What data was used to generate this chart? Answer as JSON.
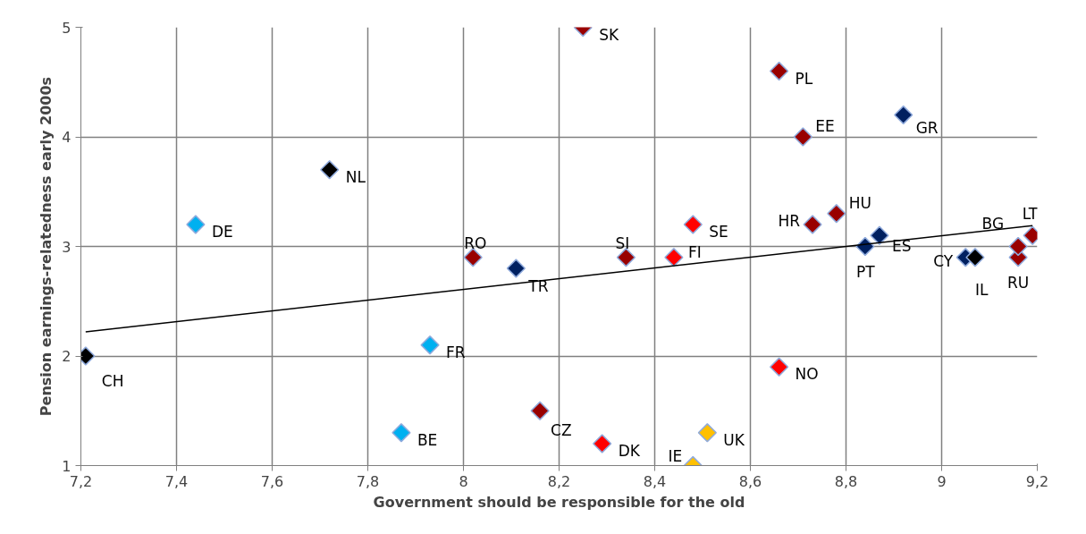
{
  "chart_data": {
    "type": "scatter",
    "xlabel": "Government should be responsible for the old",
    "ylabel": "Pension earnings-relatedness early 2000s",
    "marker": "diamond",
    "grid": true,
    "xlim": [
      7.2,
      9.2
    ],
    "ylim": [
      1,
      5
    ],
    "xticks": [
      {
        "value": 7.2,
        "label": "7,2"
      },
      {
        "value": 7.4,
        "label": "7,4"
      },
      {
        "value": 7.6,
        "label": "7,6"
      },
      {
        "value": 7.8,
        "label": "7,8"
      },
      {
        "value": 8,
        "label": "8"
      },
      {
        "value": 8.2,
        "label": "8,2"
      },
      {
        "value": 8.4,
        "label": "8,4"
      },
      {
        "value": 8.6,
        "label": "8,6"
      },
      {
        "value": 8.8,
        "label": "8,8"
      },
      {
        "value": 9,
        "label": "9"
      },
      {
        "value": 9.2,
        "label": "9,2"
      }
    ],
    "yticks": [
      1,
      2,
      3,
      4,
      5
    ],
    "series": [
      {
        "name": "CH",
        "color": "#000000",
        "x": [
          7.21
        ],
        "values": [
          2.0
        ]
      },
      {
        "name": "DE",
        "color": "#00b0f0",
        "x": [
          7.44
        ],
        "values": [
          3.2
        ]
      },
      {
        "name": "NL",
        "color": "#000000",
        "x": [
          7.72
        ],
        "values": [
          3.7
        ]
      },
      {
        "name": "BE",
        "color": "#00b0f0",
        "x": [
          7.87
        ],
        "values": [
          1.3
        ]
      },
      {
        "name": "FR",
        "color": "#00b0f0",
        "x": [
          7.93
        ],
        "values": [
          2.1
        ]
      },
      {
        "name": "RO",
        "color": "#990000",
        "x": [
          8.02
        ],
        "values": [
          2.9
        ]
      },
      {
        "name": "TR",
        "color": "#002060",
        "x": [
          8.11
        ],
        "values": [
          2.8
        ]
      },
      {
        "name": "CZ",
        "color": "#990000",
        "x": [
          8.16
        ],
        "values": [
          1.5
        ]
      },
      {
        "name": "SK",
        "color": "#990000",
        "x": [
          8.25
        ],
        "values": [
          5.0
        ]
      },
      {
        "name": "DK",
        "color": "#ff0000",
        "x": [
          8.29
        ],
        "values": [
          1.2
        ]
      },
      {
        "name": "SI",
        "color": "#990000",
        "x": [
          8.34
        ],
        "values": [
          2.9
        ]
      },
      {
        "name": "FI",
        "color": "#ff0000",
        "x": [
          8.44
        ],
        "values": [
          2.9
        ]
      },
      {
        "name": "SE",
        "color": "#ff0000",
        "x": [
          8.48
        ],
        "values": [
          3.2
        ]
      },
      {
        "name": "IE",
        "color": "#ffc000",
        "x": [
          8.48
        ],
        "values": [
          1.0
        ]
      },
      {
        "name": "UK",
        "color": "#ffc000",
        "x": [
          8.51
        ],
        "values": [
          1.3
        ]
      },
      {
        "name": "PL",
        "color": "#990000",
        "x": [
          8.66
        ],
        "values": [
          4.6
        ]
      },
      {
        "name": "NO",
        "color": "#ff0000",
        "x": [
          8.66
        ],
        "values": [
          1.9
        ]
      },
      {
        "name": "EE",
        "color": "#990000",
        "x": [
          8.71
        ],
        "values": [
          4.0
        ]
      },
      {
        "name": "HR",
        "color": "#990000",
        "x": [
          8.73
        ],
        "values": [
          3.2
        ]
      },
      {
        "name": "HU",
        "color": "#990000",
        "x": [
          8.78
        ],
        "values": [
          3.3
        ]
      },
      {
        "name": "PT",
        "color": "#002060",
        "x": [
          8.84
        ],
        "values": [
          3.0
        ]
      },
      {
        "name": "ES",
        "color": "#002060",
        "x": [
          8.87
        ],
        "values": [
          3.1
        ]
      },
      {
        "name": "GR",
        "color": "#002060",
        "x": [
          8.92
        ],
        "values": [
          4.2
        ]
      },
      {
        "name": "CY",
        "color": "#002060",
        "x": [
          9.05
        ],
        "values": [
          2.9
        ]
      },
      {
        "name": "IL",
        "color": "#000000",
        "x": [
          9.07
        ],
        "values": [
          2.9
        ]
      },
      {
        "name": "RU",
        "color": "#990000",
        "x": [
          9.16
        ],
        "values": [
          2.9
        ]
      },
      {
        "name": "BG",
        "color": "#990000",
        "x": [
          9.16
        ],
        "values": [
          3.0
        ]
      },
      {
        "name": "LT",
        "color": "#990000",
        "x": [
          9.19
        ],
        "values": [
          3.1
        ]
      },
      {
        "type": "line",
        "marker": "none",
        "color": "#000000",
        "x": [
          7.21,
          9.19
        ],
        "values": [
          2.22,
          3.19
        ]
      }
    ]
  }
}
